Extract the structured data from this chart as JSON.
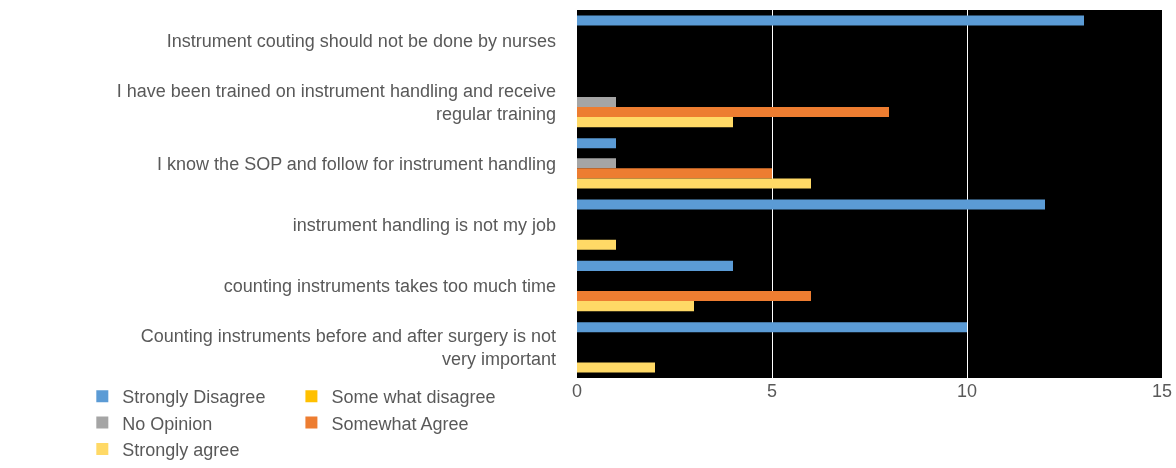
{
  "chart_data": {
    "type": "bar",
    "orientation": "horizontal",
    "categories": [
      "Instrument couting should not be done by nurses",
      "I have been trained on instrument handling and receive regular training",
      "I know the SOP and follow for instrument handling",
      "instrument handling is not my job",
      "counting instruments takes too much time",
      "Counting instruments before and after surgery is not very important"
    ],
    "series": [
      {
        "name": "Strongly Disagree",
        "color": "#5b9bd5",
        "values": [
          13,
          0,
          1,
          12,
          4,
          10
        ]
      },
      {
        "name": "Some what disagree",
        "color": "#ffc000",
        "values": [
          0,
          0,
          0,
          0,
          0,
          0
        ]
      },
      {
        "name": "No Opinion",
        "color": "#a5a5a5",
        "values": [
          0,
          1,
          1,
          0,
          0,
          0
        ]
      },
      {
        "name": "Somewhat Agree",
        "color": "#ed7d31",
        "values": [
          0,
          8,
          5,
          0,
          6,
          0
        ]
      },
      {
        "name": "Strongly agree",
        "color": "#ffd966",
        "values": [
          0,
          4,
          6,
          1,
          3,
          2
        ]
      }
    ],
    "xlim": [
      0,
      15
    ],
    "xticks": [
      0,
      5,
      10,
      15
    ],
    "grid": "x",
    "legend": "bottom"
  }
}
